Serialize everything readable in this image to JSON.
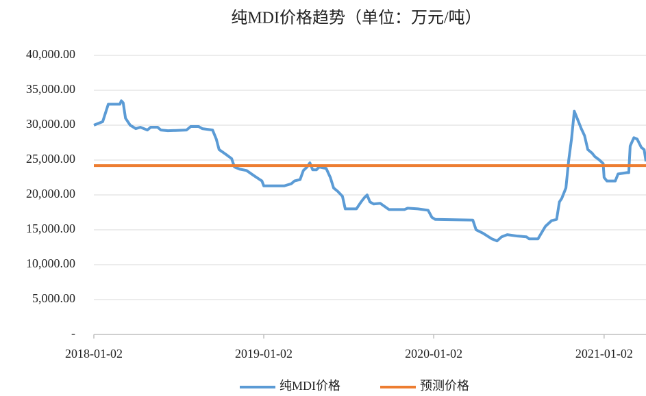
{
  "chart_data": {
    "type": "line",
    "title": "纯MDI价格趋势（单位：万元/吨）",
    "x": [
      "2018-01-02",
      "2018-01-21",
      "2018-02-02",
      "2018-02-27",
      "2018-03-02",
      "2018-03-06",
      "2018-03-11",
      "2018-03-21",
      "2018-04-02",
      "2018-04-12",
      "2018-04-27",
      "2018-05-04",
      "2018-05-19",
      "2018-05-26",
      "2018-06-10",
      "2018-07-20",
      "2018-07-29",
      "2018-08-15",
      "2018-08-23",
      "2018-09-14",
      "2018-09-22",
      "2018-09-28",
      "2018-10-13",
      "2018-10-25",
      "2018-10-31",
      "2018-11-11",
      "2018-11-26",
      "2018-12-11",
      "2018-12-29",
      "2019-01-02",
      "2019-02-15",
      "2019-03-02",
      "2019-03-09",
      "2019-03-21",
      "2019-03-28",
      "2019-04-05",
      "2019-04-11",
      "2019-04-17",
      "2019-04-25",
      "2019-05-01",
      "2019-05-16",
      "2019-05-25",
      "2019-06-01",
      "2019-06-10",
      "2019-06-20",
      "2019-06-26",
      "2019-07-20",
      "2019-07-30",
      "2019-08-06",
      "2019-08-12",
      "2019-08-18",
      "2019-08-26",
      "2019-09-09",
      "2019-09-28",
      "2019-10-31",
      "2019-11-07",
      "2019-11-29",
      "2019-12-21",
      "2019-12-29",
      "2020-01-05",
      "2020-03-26",
      "2020-04-02",
      "2020-04-17",
      "2020-05-06",
      "2020-05-17",
      "2020-05-27",
      "2020-06-08",
      "2020-06-30",
      "2020-07-19",
      "2020-07-25",
      "2020-08-13",
      "2020-08-20",
      "2020-08-29",
      "2020-09-11",
      "2020-09-22",
      "2020-09-28",
      "2020-10-03",
      "2020-10-12",
      "2020-10-18",
      "2020-10-24",
      "2020-10-30",
      "2020-11-05",
      "2020-11-14",
      "2020-11-21",
      "2020-11-28",
      "2020-12-07",
      "2020-12-13",
      "2020-12-23",
      "2020-12-31",
      "2021-01-02",
      "2021-01-08",
      "2021-01-26",
      "2021-02-01",
      "2021-02-20",
      "2021-02-24",
      "2021-02-27",
      "2021-03-07",
      "2021-03-14",
      "2021-03-23",
      "2021-03-29",
      "2021-04-02"
    ],
    "series": [
      {
        "name": "纯MDI价格",
        "color": "#5b9bd5",
        "values": [
          30000,
          30500,
          33000,
          33000,
          33500,
          33200,
          31000,
          30000,
          29500,
          29700,
          29300,
          29700,
          29700,
          29300,
          29200,
          29300,
          29800,
          29800,
          29500,
          29300,
          28000,
          26500,
          25800,
          25200,
          24000,
          23700,
          23500,
          22800,
          22000,
          21300,
          21300,
          21600,
          22000,
          22200,
          23500,
          24000,
          24600,
          23600,
          23600,
          24000,
          23800,
          22500,
          21000,
          20500,
          19800,
          18000,
          18000,
          19000,
          19600,
          20000,
          19000,
          18700,
          18800,
          17900,
          17900,
          18100,
          18000,
          17800,
          16800,
          16500,
          16400,
          15000,
          14500,
          13700,
          13400,
          14000,
          14300,
          14100,
          14000,
          13700,
          13700,
          14500,
          15500,
          16300,
          16500,
          19000,
          19500,
          21000,
          25000,
          28000,
          32000,
          31000,
          29500,
          28500,
          26500,
          26000,
          25500,
          25000,
          24500,
          22500,
          22000,
          22000,
          23000,
          23200,
          23200,
          27000,
          28200,
          28000,
          26800,
          26500,
          24800
        ]
      },
      {
        "name": "预测价格",
        "color": "#ed7d31",
        "x": [
          "2018-01-02",
          "2021-04-02"
        ],
        "values": [
          24200,
          24200
        ]
      }
    ],
    "xlim": [
      "2018-01-02",
      "2021-04-02"
    ],
    "xticks": [
      "2018-01-02",
      "2019-01-02",
      "2020-01-02",
      "2021-01-02"
    ],
    "ylim": [
      0,
      40000
    ],
    "yticks": [
      {
        "value": 0,
        "label": "-"
      },
      {
        "value": 5000,
        "label": "5,000.00"
      },
      {
        "value": 10000,
        "label": "10,000.00"
      },
      {
        "value": 15000,
        "label": "15,000.00"
      },
      {
        "value": 20000,
        "label": "20,000.00"
      },
      {
        "value": 25000,
        "label": "25,000.00"
      },
      {
        "value": 30000,
        "label": "30,000.00"
      },
      {
        "value": 35000,
        "label": "35,000.00"
      },
      {
        "value": 40000,
        "label": "40,000.00"
      }
    ],
    "grid": true,
    "legend": "bottom"
  }
}
